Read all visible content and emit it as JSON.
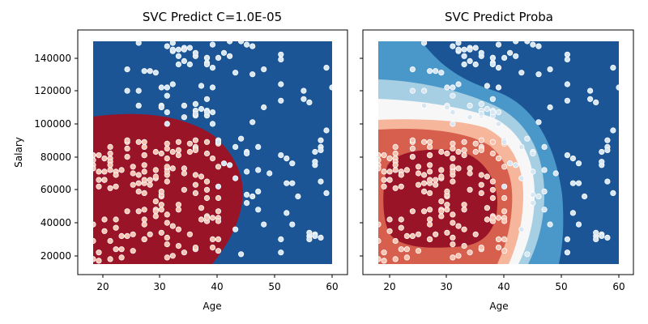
{
  "chart_data": [
    {
      "type": "scatter",
      "title": "SVC Predict C=1.0E-05",
      "xlabel": "Age",
      "ylabel": "Salary",
      "xlim": [
        16,
        62
      ],
      "ylim": [
        8000,
        155000
      ],
      "x_ticks": [
        20,
        30,
        40,
        50,
        60
      ],
      "y_ticks": [
        20000,
        40000,
        60000,
        80000,
        100000,
        120000,
        140000
      ],
      "x_tick_labels": [
        "20",
        "30",
        "40",
        "50",
        "60"
      ],
      "y_tick_labels": [
        "20000",
        "40000",
        "60000",
        "80000",
        "100000",
        "120000",
        "140000"
      ],
      "decision_regions": {
        "class_0_color": "#9a1428",
        "class_1_color": "#1b5596",
        "boundary": [
          [
            18,
            105000
          ],
          [
            24,
            106000
          ],
          [
            30,
            103000
          ],
          [
            36,
            93000
          ],
          [
            40,
            80000
          ],
          [
            43,
            62000
          ],
          [
            43,
            52000
          ],
          [
            41,
            38000
          ],
          [
            38,
            23000
          ],
          [
            36,
            15000
          ]
        ]
      },
      "point_colors": {
        "class_0": "#f6c3b0",
        "class_1": "#d6e6f2",
        "edge": "#ffffff"
      }
    },
    {
      "type": "scatter",
      "title": "SVC Predict Proba",
      "xlabel": "Age",
      "ylabel": "",
      "xlim": [
        16,
        62
      ],
      "ylim": [
        8000,
        155000
      ],
      "x_ticks": [
        20,
        30,
        40,
        50,
        60
      ],
      "y_ticks": [
        20000,
        40000,
        60000,
        80000,
        100000,
        120000,
        140000
      ],
      "x_tick_labels": [
        "20",
        "30",
        "40",
        "50",
        "60"
      ],
      "probability_bands": [
        {
          "level": 0.9,
          "color": "#1b5596"
        },
        {
          "level": 0.75,
          "color": "#4a98c9"
        },
        {
          "level": 0.6,
          "color": "#a7cfe4"
        },
        {
          "level": 0.5,
          "color": "#f7f7f7"
        },
        {
          "level": 0.4,
          "color": "#f6b69b"
        },
        {
          "level": 0.25,
          "color": "#d6604d"
        },
        {
          "level": 0.1,
          "color": "#9a1428"
        }
      ],
      "point_colors": {
        "class_0": "#f6c3b0",
        "class_1": "#d6e6f2",
        "edge": "#ffffff"
      }
    }
  ]
}
